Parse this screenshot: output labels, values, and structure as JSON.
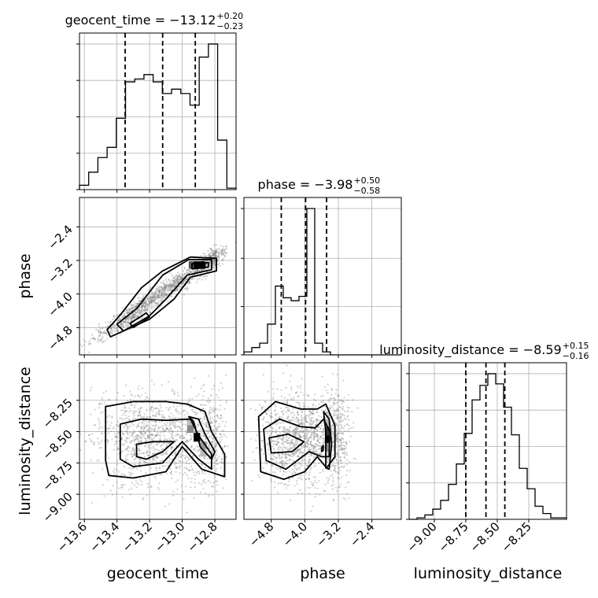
{
  "chart_data": {
    "type": "corner",
    "parameters": [
      "geocent_time",
      "phase",
      "luminosity_distance"
    ],
    "titles": [
      {
        "main": "geocent_time = −13.12",
        "plus": "+0.20",
        "minus": "−0.23"
      },
      {
        "main": "phase = −3.98",
        "plus": "+0.50",
        "minus": "−0.58"
      },
      {
        "main": "luminosity_distance = −8.59",
        "plus": "+0.15",
        "minus": "−0.16"
      }
    ],
    "ranges": {
      "geocent_time": [
        -13.63,
        -12.67
      ],
      "phase": [
        -5.45,
        -1.7
      ],
      "luminosity_distance": [
        -9.2,
        -7.95
      ]
    },
    "ticks": {
      "geocent_time": [
        -13.6,
        -13.4,
        -13.2,
        -13.0,
        -12.8
      ],
      "geocent_time_labels": [
        "−13.6",
        "−13.4",
        "−13.2",
        "−13.0",
        "−12.8"
      ],
      "phase": [
        -4.8,
        -4.0,
        -3.2,
        -2.4
      ],
      "phase_labels": [
        "−4.8",
        "−4.0",
        "−3.2",
        "−2.4"
      ],
      "luminosity_distance": [
        -9.0,
        -8.75,
        -8.5,
        -8.25
      ],
      "luminosity_distance_labels": [
        "−9.00",
        "−8.75",
        "−8.50",
        "−8.25"
      ]
    },
    "quantiles": {
      "geocent_time": [
        -13.35,
        -13.12,
        -12.92
      ],
      "phase": [
        -4.56,
        -3.98,
        -3.48
      ],
      "luminosity_distance": [
        -8.75,
        -8.59,
        -8.44
      ]
    },
    "histograms": {
      "geocent_time": {
        "range": [
          -13.63,
          -12.67
        ],
        "counts": [
          0.03,
          0.12,
          0.22,
          0.29,
          0.49,
          0.74,
          0.76,
          0.79,
          0.74,
          0.66,
          0.69,
          0.66,
          0.58,
          0.91,
          1.0,
          0.34,
          0.01
        ]
      },
      "phase": {
        "range": [
          -5.45,
          -1.7
        ],
        "counts": [
          0.02,
          0.05,
          0.08,
          0.21,
          0.47,
          0.39,
          0.37,
          0.4,
          1.0,
          0.08,
          0.02,
          0.0,
          0.0,
          0.0,
          0.0,
          0.0,
          0.0,
          0.0,
          0.0,
          0.0
        ]
      },
      "luminosity_distance": {
        "range": [
          -9.2,
          -7.95
        ],
        "counts": [
          0.0,
          0.01,
          0.03,
          0.07,
          0.13,
          0.24,
          0.38,
          0.59,
          0.82,
          0.92,
          1.0,
          0.93,
          0.77,
          0.58,
          0.35,
          0.21,
          0.09,
          0.04,
          0.01,
          0.01
        ]
      }
    },
    "contours": {
      "phase_vs_geocent_time": [
        [
          [
            -13.44,
            -5.02
          ],
          [
            -13.2,
            -4.6
          ],
          [
            -13.05,
            -4.12
          ],
          [
            -12.95,
            -3.6
          ],
          [
            -12.79,
            -3.45
          ],
          [
            -12.79,
            -3.15
          ],
          [
            -12.95,
            -3.12
          ],
          [
            -13.12,
            -3.45
          ],
          [
            -13.25,
            -3.85
          ],
          [
            -13.38,
            -4.5
          ],
          [
            -13.46,
            -4.85
          ]
        ],
        [
          [
            -13.36,
            -4.88
          ],
          [
            -13.2,
            -4.52
          ],
          [
            -13.1,
            -4.12
          ],
          [
            -12.97,
            -3.55
          ],
          [
            -12.82,
            -3.42
          ],
          [
            -12.82,
            -3.18
          ],
          [
            -12.96,
            -3.18
          ],
          [
            -13.12,
            -3.55
          ],
          [
            -13.28,
            -4.35
          ],
          [
            -13.4,
            -4.72
          ]
        ],
        [
          [
            -13.3,
            -4.8
          ],
          [
            -13.2,
            -4.55
          ],
          [
            -13.22,
            -4.45
          ],
          [
            -13.32,
            -4.7
          ]
        ],
        [
          [
            -12.94,
            -3.4
          ],
          [
            -12.84,
            -3.36
          ],
          [
            -12.84,
            -3.25
          ],
          [
            -12.94,
            -3.28
          ]
        ],
        [
          [
            -12.91,
            -3.37
          ],
          [
            -12.86,
            -3.35
          ],
          [
            -12.86,
            -3.29
          ],
          [
            -12.91,
            -3.3
          ]
        ]
      ],
      "luminosity_distance_vs_geocent_time": [
        [
          [
            -13.47,
            -8.73
          ],
          [
            -13.47,
            -8.3
          ],
          [
            -13.3,
            -8.26
          ],
          [
            -13.1,
            -8.26
          ],
          [
            -12.97,
            -8.28
          ],
          [
            -12.86,
            -8.34
          ],
          [
            -12.82,
            -8.5
          ],
          [
            -12.74,
            -8.68
          ],
          [
            -12.74,
            -8.86
          ],
          [
            -12.88,
            -8.8
          ],
          [
            -13.0,
            -8.62
          ],
          [
            -13.1,
            -8.82
          ],
          [
            -13.3,
            -8.87
          ],
          [
            -13.45,
            -8.85
          ]
        ],
        [
          [
            -13.38,
            -8.72
          ],
          [
            -13.38,
            -8.44
          ],
          [
            -13.25,
            -8.4
          ],
          [
            -13.1,
            -8.41
          ],
          [
            -12.95,
            -8.4
          ],
          [
            -12.9,
            -8.53
          ],
          [
            -12.82,
            -8.68
          ],
          [
            -12.82,
            -8.8
          ],
          [
            -12.9,
            -8.72
          ],
          [
            -13.0,
            -8.58
          ],
          [
            -13.12,
            -8.75
          ],
          [
            -13.3,
            -8.78
          ]
        ],
        [
          [
            -13.28,
            -8.7
          ],
          [
            -13.28,
            -8.6
          ],
          [
            -13.18,
            -8.58
          ],
          [
            -13.05,
            -8.58
          ],
          [
            -13.12,
            -8.66
          ],
          [
            -13.22,
            -8.72
          ]
        ],
        [
          [
            -12.96,
            -8.38
          ],
          [
            -12.93,
            -8.42
          ],
          [
            -12.89,
            -8.62
          ],
          [
            -12.82,
            -8.72
          ],
          [
            -12.8,
            -8.66
          ],
          [
            -12.86,
            -8.52
          ],
          [
            -12.9,
            -8.4
          ]
        ]
      ],
      "luminosity_distance_vs_phase": [
        [
          [
            -5.05,
            -8.82
          ],
          [
            -5.1,
            -8.38
          ],
          [
            -4.7,
            -8.26
          ],
          [
            -4.1,
            -8.32
          ],
          [
            -3.7,
            -8.32
          ],
          [
            -3.5,
            -8.28
          ],
          [
            -3.28,
            -8.45
          ],
          [
            -3.28,
            -8.7
          ],
          [
            -3.48,
            -8.79
          ],
          [
            -3.7,
            -8.7
          ],
          [
            -4.0,
            -8.82
          ],
          [
            -4.5,
            -8.88
          ]
        ],
        [
          [
            -4.92,
            -8.73
          ],
          [
            -4.98,
            -8.48
          ],
          [
            -4.6,
            -8.4
          ],
          [
            -4.1,
            -8.46
          ],
          [
            -3.75,
            -8.47
          ],
          [
            -3.55,
            -8.4
          ],
          [
            -3.4,
            -8.5
          ],
          [
            -3.42,
            -8.7
          ],
          [
            -3.6,
            -8.7
          ],
          [
            -3.9,
            -8.66
          ],
          [
            -4.45,
            -8.8
          ]
        ],
        [
          [
            -4.8,
            -8.67
          ],
          [
            -4.85,
            -8.55
          ],
          [
            -4.4,
            -8.52
          ],
          [
            -4.02,
            -8.58
          ],
          [
            -4.3,
            -8.66
          ]
        ],
        [
          [
            -3.55,
            -8.34
          ],
          [
            -3.5,
            -8.5
          ],
          [
            -3.5,
            -8.79
          ],
          [
            -3.42,
            -8.8
          ],
          [
            -3.36,
            -8.6
          ],
          [
            -3.42,
            -8.4
          ]
        ],
        [
          [
            -3.6,
            -8.63
          ],
          [
            -3.56,
            -8.61
          ],
          [
            -3.56,
            -8.65
          ],
          [
            -3.6,
            -8.66
          ]
        ]
      ]
    },
    "density_cells": {
      "luminosity_distance_vs_geocent_time": [
        {
          "x": [
            -12.97,
            -12.93
          ],
          "y": [
            -8.45,
            -8.39
          ],
          "shade": "#bbbbbb"
        },
        {
          "x": [
            -12.97,
            -12.93
          ],
          "y": [
            -8.51,
            -8.45
          ],
          "shade": "#888888"
        },
        {
          "x": [
            -12.93,
            -12.89
          ],
          "y": [
            -8.58,
            -8.51
          ],
          "shade": "#000000"
        },
        {
          "x": [
            -12.89,
            -12.85
          ],
          "y": [
            -8.64,
            -8.58
          ],
          "shade": "#999999"
        },
        {
          "x": [
            -12.89,
            -12.85
          ],
          "y": [
            -8.7,
            -8.64
          ],
          "shade": "#bbbbbb"
        },
        {
          "x": [
            -13.08,
            -13.04
          ],
          "y": [
            -8.45,
            -8.39
          ],
          "shade": "#dddddd"
        }
      ],
      "luminosity_distance_vs_phase": [
        {
          "x": [
            -3.52,
            -3.42
          ],
          "y": [
            -8.46,
            -8.4
          ],
          "shade": "#bbbbbb"
        },
        {
          "x": [
            -3.52,
            -3.42
          ],
          "y": [
            -8.53,
            -8.46
          ],
          "shade": "#333333"
        },
        {
          "x": [
            -3.52,
            -3.42
          ],
          "y": [
            -8.59,
            -8.53
          ],
          "shade": "#000000"
        },
        {
          "x": [
            -3.52,
            -3.42
          ],
          "y": [
            -8.66,
            -8.59
          ],
          "shade": "#888888"
        },
        {
          "x": [
            -3.52,
            -3.42
          ],
          "y": [
            -8.72,
            -8.66
          ],
          "shade": "#cccccc"
        }
      ],
      "phase_vs_geocent_time": [
        {
          "x": [
            -12.93,
            -12.86
          ],
          "y": [
            -3.4,
            -3.22
          ],
          "shade": "#000000"
        },
        {
          "x": [
            -12.96,
            -12.93
          ],
          "y": [
            -3.4,
            -3.22
          ],
          "shade": "#555555"
        }
      ]
    }
  }
}
